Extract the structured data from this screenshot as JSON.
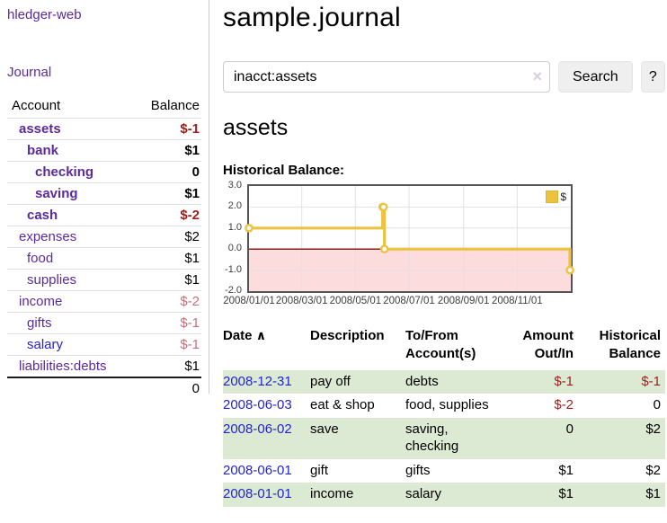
{
  "sidebar": {
    "brand": "hledger-web",
    "journal_link": "Journal",
    "accounts": {
      "header": {
        "account": "Account",
        "balance": "Balance"
      },
      "rows": [
        {
          "name": "assets",
          "balance": "$-1"
        },
        {
          "name": "bank",
          "balance": "$1"
        },
        {
          "name": "checking",
          "balance": "0"
        },
        {
          "name": "saving",
          "balance": "$1"
        },
        {
          "name": "cash",
          "balance": "$-2"
        },
        {
          "name": "expenses",
          "balance": "$2"
        },
        {
          "name": "food",
          "balance": "$1"
        },
        {
          "name": "supplies",
          "balance": "$1"
        },
        {
          "name": "income",
          "balance": "$-2"
        },
        {
          "name": "gifts",
          "balance": "$-1"
        },
        {
          "name": "salary",
          "balance": "$-1"
        },
        {
          "name": "liabilities:debts",
          "balance": "$1"
        }
      ],
      "total": "0"
    }
  },
  "main": {
    "title": "sample.journal",
    "search": {
      "value": "inacct:assets",
      "clear_icon": "×",
      "search_button": "Search",
      "help_button": "?"
    },
    "heading": "assets",
    "chart_title": "Historical Balance:"
  },
  "chart_data": {
    "type": "line",
    "step": true,
    "title": "Historical Balance",
    "series": [
      {
        "name": "$",
        "color": "#EDC240",
        "points": [
          [
            "2008-01-01",
            1
          ],
          [
            "2008-06-01",
            2
          ],
          [
            "2008-06-02",
            2
          ],
          [
            "2008-06-03",
            0
          ],
          [
            "2008-12-31",
            -1
          ]
        ]
      }
    ],
    "x_ticks": [
      "2008/01/01",
      "2008/03/01",
      "2008/05/01",
      "2008/07/01",
      "2008/09/01",
      "2008/11/01"
    ],
    "y_ticks": [
      3.0,
      2.0,
      1.0,
      0.0,
      -1.0,
      -2.0
    ],
    "ylim": [
      -2,
      3
    ],
    "xlim": [
      "2008-01-01",
      "2009-01-01"
    ],
    "grid": true,
    "negative_region_color": "#fcdcdc",
    "zero_line_color": "#7a0f0f",
    "gridline_color": "#e2e2e2",
    "legend": {
      "label": "$",
      "position": "top-right"
    }
  },
  "register": {
    "sort_icon": "∧",
    "headers": [
      {
        "line1": "Date",
        "line2": ""
      },
      {
        "line1": "Description",
        "line2": ""
      },
      {
        "line1": "To/From",
        "line2": "Account(s)"
      },
      {
        "line1": "Amount",
        "line2": "Out/In"
      },
      {
        "line1": "Historical",
        "line2": "Balance"
      }
    ],
    "rows": [
      {
        "date": "2008-12-31",
        "description": "pay off",
        "accounts": "debts",
        "amount": "$-1",
        "balance": "$-1"
      },
      {
        "date": "2008-06-03",
        "description": "eat & shop",
        "accounts": "food, supplies",
        "amount": "$-2",
        "balance": "0"
      },
      {
        "date": "2008-06-02",
        "description": "save",
        "accounts": "saving, checking",
        "amount": "0",
        "balance": "$2"
      },
      {
        "date": "2008-06-01",
        "description": "gift",
        "accounts": "gifts",
        "amount": "$1",
        "balance": "$2"
      },
      {
        "date": "2008-01-01",
        "description": "income",
        "accounts": "salary",
        "amount": "$1",
        "balance": "$1"
      }
    ]
  },
  "colors": {
    "link_purple": "#5b2a9d",
    "link_blue": "#2323d6",
    "negative": "#9e1e1e",
    "negative_soft": "#c47079",
    "row_green": "#dcead3",
    "chart_line": "#EDC240",
    "chart_negative_bg": "#fcdcdc",
    "button_bg": "#efefef"
  }
}
